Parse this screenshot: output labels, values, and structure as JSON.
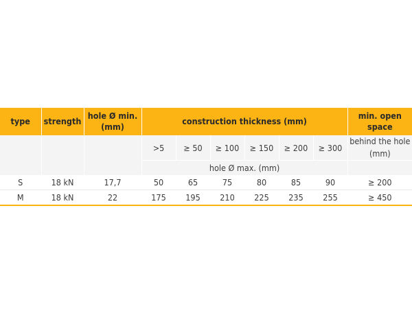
{
  "headers": {
    "type": "type",
    "strength": "strength",
    "hole_min": "hole Ø min. (mm)",
    "construction_thickness": "construction thickness (mm)",
    "min_open_space": "min. open space"
  },
  "subheaders": {
    "thickness_cols": [
      ">5",
      "≥ 50",
      "≥ 100",
      "≥ 150",
      "≥ 200",
      "≥ 300"
    ],
    "behind_hole": "behind the hole (mm)",
    "hole_max": "hole Ø max. (mm)"
  },
  "rows": [
    {
      "type": "S",
      "strength": "18 kN",
      "hole_min": "17,7",
      "values": [
        "50",
        "65",
        "75",
        "80",
        "85",
        "90"
      ],
      "open_space": "≥ 200"
    },
    {
      "type": "M",
      "strength": "18 kN",
      "hole_min": "22",
      "values": [
        "175",
        "195",
        "210",
        "225",
        "235",
        "255"
      ],
      "open_space": "≥ 450"
    }
  ],
  "colors": {
    "header_bg": "#fcb415",
    "subheader_bg": "#f4f4f4",
    "bottom_rule": "#fcb415"
  }
}
